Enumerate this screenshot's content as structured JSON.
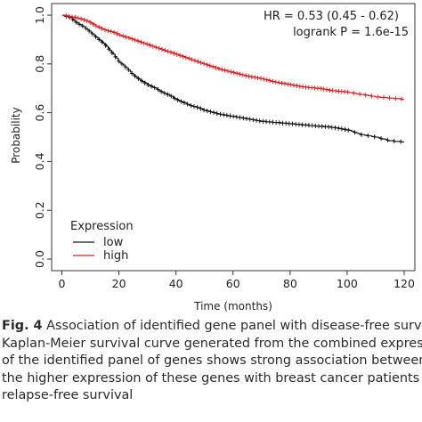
{
  "chart_data": {
    "type": "line",
    "subtype": "kaplan-meier",
    "xlabel": "Time (months)",
    "ylabel": "Probability",
    "xlim": [
      0,
      120
    ],
    "ylim": [
      0,
      1
    ],
    "xticks": [
      "0",
      "20",
      "40",
      "60",
      "80",
      "100",
      "120"
    ],
    "yticks": [
      "0.0",
      "0.2",
      "0.4",
      "0.6",
      "0.8",
      "1.0"
    ],
    "annotations": [
      "HR = 0.53 (0.45 - 0.62)",
      "logrank P = 1.6e-15"
    ],
    "legend": {
      "title": "Expression",
      "position": "bottom-left"
    },
    "series": [
      {
        "name": "low",
        "color": "#111111",
        "x": [
          0,
          3,
          5,
          8,
          10,
          12,
          15,
          18,
          20,
          23,
          25,
          28,
          30,
          33,
          35,
          38,
          40,
          43,
          45,
          48,
          50,
          55,
          60,
          65,
          70,
          75,
          80,
          85,
          90,
          95,
          100,
          105,
          110,
          115,
          120
        ],
        "y": [
          1.0,
          0.99,
          0.97,
          0.95,
          0.93,
          0.91,
          0.88,
          0.84,
          0.81,
          0.78,
          0.755,
          0.73,
          0.715,
          0.7,
          0.685,
          0.67,
          0.655,
          0.64,
          0.63,
          0.62,
          0.61,
          0.595,
          0.585,
          0.575,
          0.565,
          0.56,
          0.555,
          0.55,
          0.545,
          0.54,
          0.53,
          0.51,
          0.5,
          0.485,
          0.48
        ]
      },
      {
        "name": "high",
        "color": "#e31a1c",
        "x": [
          0,
          5,
          8,
          10,
          12,
          15,
          18,
          20,
          25,
          30,
          35,
          40,
          45,
          50,
          55,
          60,
          65,
          70,
          75,
          80,
          85,
          90,
          95,
          100,
          105,
          110,
          115,
          120
        ],
        "y": [
          1.0,
          0.99,
          0.98,
          0.97,
          0.955,
          0.94,
          0.93,
          0.92,
          0.9,
          0.88,
          0.86,
          0.84,
          0.82,
          0.8,
          0.78,
          0.765,
          0.75,
          0.74,
          0.725,
          0.715,
          0.705,
          0.7,
          0.69,
          0.685,
          0.675,
          0.665,
          0.66,
          0.655
        ]
      }
    ]
  },
  "caption": {
    "label": "Fig. 4",
    "lines": [
      " Association of identified gene panel with disease-free survival.",
      "Kaplan-Meier survival curve generated from the combined expression",
      "of the identified panel of genes shows strong association between",
      "the higher expression of these genes with breast cancer patients",
      "relapse-free survival"
    ]
  }
}
